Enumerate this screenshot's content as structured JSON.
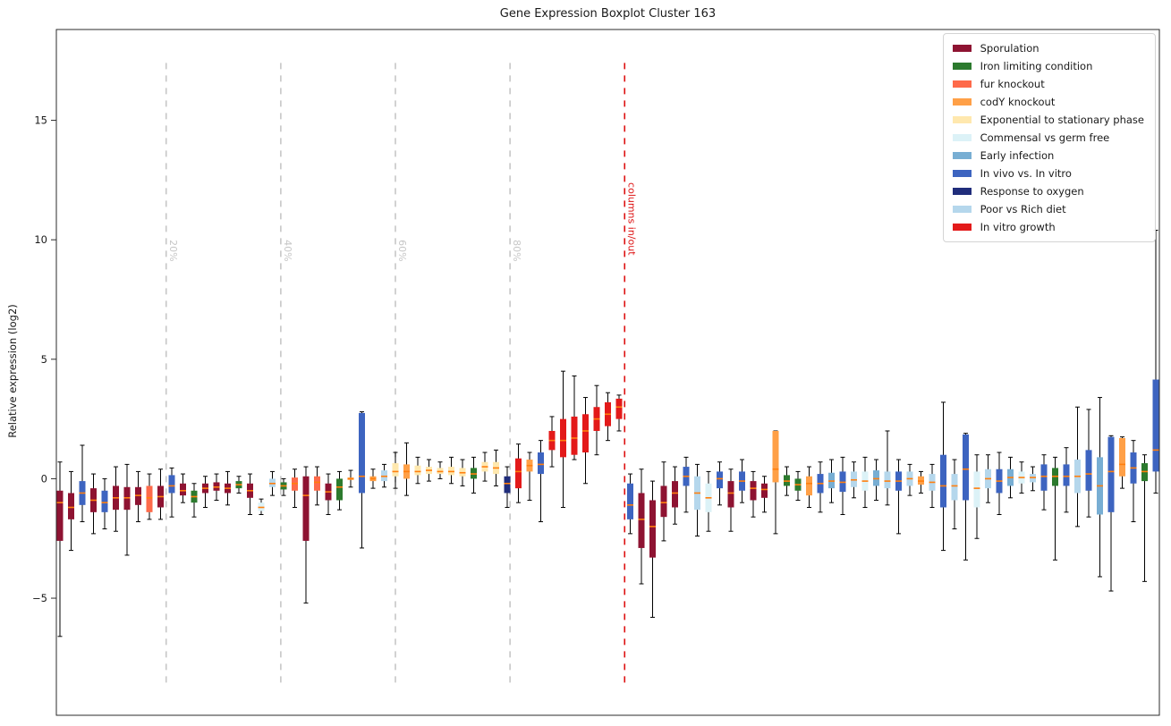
{
  "chart_data": {
    "type": "boxplot",
    "title": "Gene Expression Boxplot Cluster 163",
    "xlabel": "",
    "ylabel": "Relative expression (log2)",
    "yticks": [
      -5,
      0,
      5,
      10,
      15
    ],
    "ylim": [
      -9.9,
      18.8
    ],
    "x_tick_labels_visible": false,
    "grid": false,
    "legend_position": "upper right",
    "median_color": "#ff7f0e",
    "whisker_color": "#000000",
    "axis_color": "#2b2b2b",
    "groups": [
      {
        "name": "Sporulation",
        "color": "#8e1332"
      },
      {
        "name": "Iron limiting condition",
        "color": "#2c7a2e"
      },
      {
        "name": "fur knockout",
        "color": "#fe6a4a"
      },
      {
        "name": "codY knockout",
        "color": "#ffa047"
      },
      {
        "name": "Exponential to stationary phase",
        "color": "#ffe8ae"
      },
      {
        "name": "Commensal vs germ free",
        "color": "#dcf2f7"
      },
      {
        "name": "Early infection",
        "color": "#78aed3"
      },
      {
        "name": "In vivo vs. In vitro",
        "color": "#3d64c0"
      },
      {
        "name": "Response to oxygen",
        "color": "#202d7b"
      },
      {
        "name": "Poor vs Rich diet",
        "color": "#b5d7ec"
      },
      {
        "name": "In vitro growth",
        "color": "#e31a1a"
      }
    ],
    "vlines": [
      {
        "pos": 10.5,
        "label": "20%",
        "color": "#c7c7c7",
        "label_top": 10.0,
        "span": [
          -8.6,
          17.4
        ]
      },
      {
        "pos": 20.75,
        "label": "40%",
        "color": "#c7c7c7",
        "label_top": 10.0,
        "span": [
          -8.6,
          17.4
        ]
      },
      {
        "pos": 31.0,
        "label": "60%",
        "color": "#c7c7c7",
        "label_top": 10.0,
        "span": [
          -8.6,
          17.4
        ]
      },
      {
        "pos": 41.25,
        "label": "80%",
        "color": "#c7c7c7",
        "label_top": 10.0,
        "span": [
          -8.6,
          17.4
        ]
      },
      {
        "pos": 51.5,
        "label": "columns in/out",
        "color": "#dd1111",
        "label_top": 12.4,
        "span": [
          -8.6,
          17.4
        ]
      }
    ],
    "box_columns": [
      "group_index",
      "whisker_low",
      "q1",
      "median",
      "q3",
      "whisker_high"
    ],
    "boxes": [
      [
        0,
        -6.6,
        -2.6,
        -1.0,
        -0.5,
        0.7
      ],
      [
        0,
        -3.0,
        -1.7,
        -1.2,
        -0.6,
        0.3
      ],
      [
        7,
        -1.8,
        -1.1,
        -0.6,
        -0.1,
        1.4
      ],
      [
        0,
        -2.3,
        -1.4,
        -0.9,
        -0.4,
        0.2
      ],
      [
        7,
        -2.1,
        -1.4,
        -1.0,
        -0.5,
        0.0
      ],
      [
        0,
        -2.2,
        -1.3,
        -0.8,
        -0.3,
        0.5
      ],
      [
        0,
        -3.2,
        -1.3,
        -0.8,
        -0.35,
        0.6
      ],
      [
        0,
        -1.8,
        -1.1,
        -0.7,
        -0.35,
        0.3
      ],
      [
        2,
        -1.7,
        -1.4,
        -0.8,
        -0.3,
        0.2
      ],
      [
        0,
        -1.7,
        -1.2,
        -0.75,
        -0.3,
        0.4
      ],
      [
        7,
        -1.6,
        -0.6,
        -0.3,
        0.15,
        0.45
      ],
      [
        0,
        -1.0,
        -0.7,
        -0.5,
        -0.2,
        0.2
      ],
      [
        1,
        -1.6,
        -1.0,
        -0.75,
        -0.5,
        -0.2
      ],
      [
        0,
        -1.2,
        -0.6,
        -0.4,
        -0.2,
        0.1
      ],
      [
        0,
        -0.9,
        -0.5,
        -0.35,
        -0.15,
        0.2
      ],
      [
        0,
        -1.1,
        -0.6,
        -0.4,
        -0.2,
        0.3
      ],
      [
        1,
        -0.6,
        -0.4,
        -0.25,
        -0.1,
        0.1
      ],
      [
        0,
        -1.5,
        -0.8,
        -0.5,
        -0.2,
        0.2
      ],
      [
        5,
        -1.5,
        -1.35,
        -1.2,
        -1.0,
        -0.85
      ],
      [
        9,
        -0.7,
        -0.35,
        -0.2,
        0.0,
        0.3
      ],
      [
        1,
        -0.7,
        -0.45,
        -0.3,
        -0.15,
        0.0
      ],
      [
        2,
        -1.2,
        -0.5,
        -0.2,
        0.05,
        0.4
      ],
      [
        0,
        -5.2,
        -2.6,
        -0.7,
        0.1,
        0.5
      ],
      [
        2,
        -1.1,
        -0.5,
        -0.15,
        0.1,
        0.5
      ],
      [
        0,
        -1.5,
        -0.9,
        -0.55,
        -0.2,
        0.2
      ],
      [
        1,
        -1.3,
        -0.9,
        -0.35,
        0.0,
        0.3
      ],
      [
        3,
        -0.35,
        -0.05,
        0.0,
        0.05,
        0.35
      ],
      [
        7,
        -2.9,
        -0.6,
        0.1,
        2.75,
        2.8
      ],
      [
        3,
        -0.4,
        -0.1,
        0.0,
        0.1,
        0.4
      ],
      [
        9,
        -0.35,
        -0.1,
        0.1,
        0.35,
        0.6
      ],
      [
        4,
        -0.4,
        0.1,
        0.3,
        0.65,
        1.1
      ],
      [
        3,
        -0.7,
        0.0,
        0.3,
        0.6,
        1.5
      ],
      [
        4,
        -0.2,
        0.15,
        0.3,
        0.55,
        0.9
      ],
      [
        4,
        -0.1,
        0.2,
        0.35,
        0.5,
        0.8
      ],
      [
        4,
        0.0,
        0.2,
        0.3,
        0.45,
        0.7
      ],
      [
        4,
        -0.2,
        0.15,
        0.3,
        0.5,
        0.9
      ],
      [
        4,
        -0.3,
        0.1,
        0.25,
        0.45,
        0.8
      ],
      [
        1,
        -0.6,
        0.0,
        0.2,
        0.45,
        0.9
      ],
      [
        4,
        -0.1,
        0.3,
        0.5,
        0.7,
        1.1
      ],
      [
        4,
        -0.3,
        0.2,
        0.45,
        0.7,
        1.2
      ],
      [
        8,
        -1.2,
        -0.6,
        -0.2,
        0.1,
        0.5
      ],
      [
        10,
        -1.0,
        -0.4,
        0.3,
        0.85,
        1.45
      ],
      [
        3,
        -0.9,
        0.3,
        0.55,
        0.8,
        1.1
      ],
      [
        7,
        -1.8,
        0.2,
        0.6,
        1.1,
        1.6
      ],
      [
        10,
        0.5,
        1.2,
        1.6,
        2.0,
        2.6
      ],
      [
        10,
        -1.2,
        0.9,
        1.6,
        2.5,
        4.5
      ],
      [
        10,
        0.8,
        1.0,
        1.7,
        2.6,
        4.3
      ],
      [
        10,
        -0.2,
        1.1,
        2.0,
        2.7,
        3.4
      ],
      [
        10,
        1.0,
        2.0,
        2.5,
        3.0,
        3.9
      ],
      [
        10,
        1.6,
        2.2,
        2.7,
        3.2,
        3.6
      ],
      [
        10,
        2.0,
        2.5,
        3.0,
        3.35,
        3.5
      ],
      [
        7,
        -2.3,
        -1.7,
        -1.1,
        -0.2,
        0.2
      ],
      [
        0,
        -4.4,
        -2.9,
        -1.7,
        -0.6,
        0.4
      ],
      [
        0,
        -5.8,
        -3.3,
        -2.0,
        -0.9,
        -0.1
      ],
      [
        0,
        -2.6,
        -1.6,
        -1.0,
        -0.3,
        0.7
      ],
      [
        0,
        -1.9,
        -1.2,
        -0.6,
        -0.1,
        0.5
      ],
      [
        7,
        -1.4,
        -0.3,
        0.1,
        0.5,
        0.9
      ],
      [
        9,
        -2.4,
        -1.3,
        -0.6,
        0.1,
        0.6
      ],
      [
        5,
        -2.2,
        -1.4,
        -0.8,
        -0.2,
        0.3
      ],
      [
        7,
        -1.1,
        -0.4,
        0.0,
        0.3,
        0.7
      ],
      [
        0,
        -2.2,
        -1.2,
        -0.6,
        -0.1,
        0.4
      ],
      [
        7,
        -1.0,
        -0.5,
        -0.1,
        0.3,
        0.8
      ],
      [
        0,
        -1.6,
        -0.9,
        -0.4,
        -0.1,
        0.3
      ],
      [
        0,
        -1.4,
        -0.8,
        -0.45,
        -0.2,
        0.1
      ],
      [
        3,
        -2.3,
        -0.15,
        0.4,
        2.0,
        2.0
      ],
      [
        1,
        -0.7,
        -0.3,
        -0.1,
        0.15,
        0.5
      ],
      [
        1,
        -0.9,
        -0.5,
        -0.25,
        0.0,
        0.3
      ],
      [
        3,
        -1.2,
        -0.7,
        -0.2,
        0.1,
        0.5
      ],
      [
        7,
        -1.4,
        -0.6,
        -0.2,
        0.2,
        0.7
      ],
      [
        6,
        -1.0,
        -0.4,
        -0.1,
        0.25,
        0.8
      ],
      [
        7,
        -1.5,
        -0.55,
        -0.15,
        0.3,
        0.9
      ],
      [
        9,
        -0.8,
        -0.35,
        -0.05,
        0.3,
        0.7
      ],
      [
        5,
        -1.2,
        -0.5,
        -0.1,
        0.3,
        0.9
      ],
      [
        6,
        -0.9,
        -0.3,
        0.0,
        0.35,
        0.8
      ],
      [
        9,
        -1.1,
        -0.4,
        -0.1,
        0.3,
        2.0
      ],
      [
        7,
        -2.3,
        -0.5,
        -0.1,
        0.3,
        0.8
      ],
      [
        9,
        -0.7,
        -0.3,
        0.0,
        0.3,
        0.6
      ],
      [
        3,
        -0.6,
        -0.25,
        -0.1,
        0.1,
        0.3
      ],
      [
        9,
        -1.2,
        -0.5,
        -0.15,
        0.2,
        0.6
      ],
      [
        7,
        -3.0,
        -1.2,
        -0.3,
        1.0,
        3.2
      ],
      [
        9,
        -2.1,
        -0.9,
        -0.3,
        0.2,
        0.8
      ],
      [
        7,
        -3.4,
        -0.9,
        0.4,
        1.85,
        1.9
      ],
      [
        5,
        -2.5,
        -1.2,
        -0.4,
        0.3,
        1.0
      ],
      [
        9,
        -1.0,
        -0.4,
        0.0,
        0.4,
        1.0
      ],
      [
        7,
        -1.5,
        -0.6,
        -0.1,
        0.4,
        1.1
      ],
      [
        6,
        -0.8,
        -0.3,
        0.05,
        0.4,
        0.9
      ],
      [
        5,
        -0.6,
        -0.2,
        0.05,
        0.3,
        0.7
      ],
      [
        9,
        -0.5,
        -0.15,
        0.05,
        0.2,
        0.5
      ],
      [
        7,
        -1.3,
        -0.5,
        0.1,
        0.6,
        1.0
      ],
      [
        1,
        -3.4,
        -0.3,
        0.1,
        0.45,
        0.9
      ],
      [
        7,
        -1.4,
        -0.3,
        0.1,
        0.6,
        1.3
      ],
      [
        9,
        -2.0,
        -0.6,
        0.1,
        0.8,
        3.0
      ],
      [
        7,
        -1.6,
        -0.5,
        0.2,
        1.2,
        2.9
      ],
      [
        6,
        -4.1,
        -1.5,
        -0.3,
        0.9,
        3.4
      ],
      [
        7,
        -4.7,
        -1.4,
        0.3,
        1.75,
        1.8
      ],
      [
        3,
        -0.4,
        0.1,
        0.6,
        1.7,
        1.75
      ],
      [
        7,
        -1.8,
        -0.2,
        0.45,
        1.1,
        1.6
      ],
      [
        1,
        -4.3,
        -0.1,
        0.3,
        0.65,
        1.0
      ],
      [
        7,
        -0.6,
        0.3,
        1.2,
        4.15,
        10.4
      ]
    ]
  }
}
